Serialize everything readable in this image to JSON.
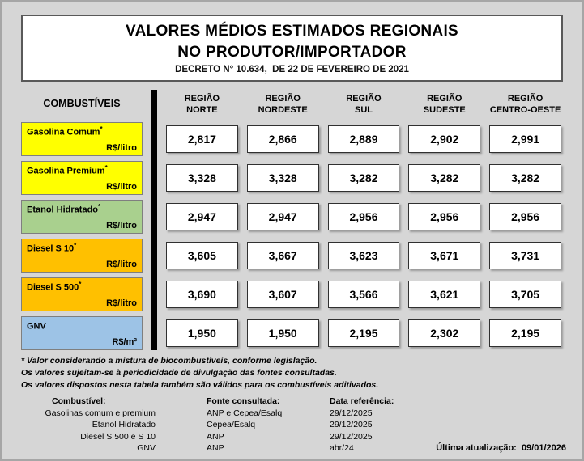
{
  "page": {
    "title_line1": "VALORES MÉDIOS ESTIMADOS REGIONAIS",
    "title_line2": "NO PRODUTOR/IMPORTADOR",
    "decree": "DECRETO N° 10.634,  DE 22 DE FEVEREIRO DE 2021"
  },
  "table": {
    "fuel_header": "COMBUSTÍVEIS",
    "regions": [
      {
        "line1": "REGIÃO",
        "line2": "NORTE"
      },
      {
        "line1": "REGIÃO",
        "line2": "NORDESTE"
      },
      {
        "line1": "REGIÃO",
        "line2": "SUL"
      },
      {
        "line1": "REGIÃO",
        "line2": "SUDESTE"
      },
      {
        "line1": "REGIÃO",
        "line2": "CENTRO-OESTE"
      }
    ],
    "rows": [
      {
        "name": "Gasolina Comum",
        "mark": "*",
        "unit": "R$/litro",
        "color": "#FFFF00",
        "values": [
          "2,817",
          "2,866",
          "2,889",
          "2,902",
          "2,991"
        ]
      },
      {
        "name": "Gasolina Premium",
        "mark": "*",
        "unit": "R$/litro",
        "color": "#FFFF00",
        "values": [
          "3,328",
          "3,328",
          "3,282",
          "3,282",
          "3,282"
        ]
      },
      {
        "name": "Etanol Hidratado",
        "mark": "*",
        "unit": "R$/litro",
        "color": "#A9D08E",
        "values": [
          "2,947",
          "2,947",
          "2,956",
          "2,956",
          "2,956"
        ]
      },
      {
        "name": "Diesel S 10",
        "mark": "*",
        "unit": "R$/litro",
        "color": "#FFC000",
        "values": [
          "3,605",
          "3,667",
          "3,623",
          "3,671",
          "3,731"
        ]
      },
      {
        "name": "Diesel S 500",
        "mark": "*",
        "unit": "R$/litro",
        "color": "#FFC000",
        "values": [
          "3,690",
          "3,607",
          "3,566",
          "3,621",
          "3,705"
        ]
      },
      {
        "name": "GNV",
        "mark": "",
        "unit": "R$/m³",
        "color": "#9DC3E6",
        "values": [
          "1,950",
          "1,950",
          "2,195",
          "2,302",
          "2,195"
        ]
      }
    ]
  },
  "footnotes": [
    "* Valor considerando a mistura de biocombustíveis, conforme legislação.",
    "Os valores sujeitam-se à periodicidade de divulgação das fontes consultadas.",
    "Os valores dispostos nesta tabela também são válidos para os combustíveis aditivados."
  ],
  "sources": {
    "col1_header": "Combustível:",
    "col2_header": "Fonte consultada:",
    "col3_header": "Data referência:",
    "rows": [
      {
        "fuel": "Gasolinas comum e premium",
        "source": "ANP e Cepea/Esalq",
        "date": "29/12/2025"
      },
      {
        "fuel": "Etanol Hidratado",
        "source": "Cepea/Esalq",
        "date": "29/12/2025"
      },
      {
        "fuel": "Diesel S 500 e S 10",
        "source": "ANP",
        "date": "29/12/2025"
      },
      {
        "fuel": "GNV",
        "source": "ANP",
        "date": "abr/24"
      }
    ]
  },
  "last_update": "Última atualização:  09/01/2026",
  "chart_data": {
    "type": "table",
    "title": "VALORES MÉDIOS ESTIMADOS REGIONAIS NO PRODUTOR/IMPORTADOR",
    "subtitle": "DECRETO N° 10.634, DE 22 DE FEVEREIRO DE 2021",
    "columns": [
      "COMBUSTÍVEIS",
      "REGIÃO NORTE",
      "REGIÃO NORDESTE",
      "REGIÃO SUL",
      "REGIÃO SUDESTE",
      "REGIÃO CENTRO-OESTE"
    ],
    "rows": [
      {
        "fuel": "Gasolina Comum",
        "unit": "R$/litro",
        "values": [
          2.817,
          2.866,
          2.889,
          2.902,
          2.991
        ]
      },
      {
        "fuel": "Gasolina Premium",
        "unit": "R$/litro",
        "values": [
          3.328,
          3.328,
          3.282,
          3.282,
          3.282
        ]
      },
      {
        "fuel": "Etanol Hidratado",
        "unit": "R$/litro",
        "values": [
          2.947,
          2.947,
          2.956,
          2.956,
          2.956
        ]
      },
      {
        "fuel": "Diesel S 10",
        "unit": "R$/litro",
        "values": [
          3.605,
          3.667,
          3.623,
          3.671,
          3.731
        ]
      },
      {
        "fuel": "Diesel S 500",
        "unit": "R$/litro",
        "values": [
          3.69,
          3.607,
          3.566,
          3.621,
          3.705
        ]
      },
      {
        "fuel": "GNV",
        "unit": "R$/m³",
        "values": [
          1.95,
          1.95,
          2.195,
          2.302,
          2.195
        ]
      }
    ]
  }
}
